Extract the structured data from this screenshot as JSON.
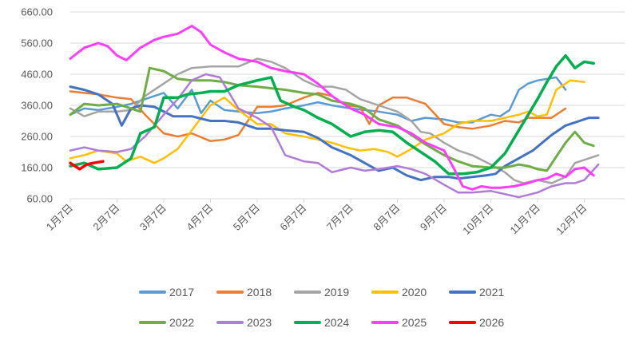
{
  "chart_data": {
    "type": "line",
    "title": "",
    "xlabel": "",
    "ylabel": "",
    "ylim": [
      60,
      660
    ],
    "yticks": [
      "660.00",
      "560.00",
      "460.00",
      "360.00",
      "260.00",
      "160.00",
      "60.00"
    ],
    "ytick_values": [
      660,
      560,
      460,
      360,
      260,
      160,
      60
    ],
    "categories": [
      "1月7日",
      "2月7日",
      "3月7日",
      "4月7日",
      "5月7日",
      "6月7日",
      "7月7日",
      "8月7日",
      "9月7日",
      "10月7日",
      "11月7日",
      "12月7日"
    ],
    "grid": "horizontal",
    "legend_position": "bottom",
    "series": [
      {
        "name": "2017",
        "color": "#5B9BD5",
        "width": 2.5,
        "x": [
          0,
          0.3,
          0.6,
          1,
          1.3,
          1.6,
          2,
          2.3,
          2.6,
          2.8,
          3,
          3.3,
          3.6,
          4,
          4.3,
          4.6,
          5,
          5.3,
          5.6,
          6,
          6.3,
          6.6,
          7,
          7.3,
          7.6,
          8,
          8.3,
          8.6,
          9,
          9.2,
          9.4,
          9.6,
          9.8,
          10,
          10.2,
          10.4,
          10.6
        ],
        "values": [
          330,
          350,
          345,
          355,
          365,
          380,
          400,
          350,
          410,
          335,
          375,
          345,
          340,
          335,
          340,
          350,
          360,
          370,
          360,
          350,
          345,
          340,
          330,
          310,
          320,
          315,
          305,
          305,
          330,
          325,
          345,
          410,
          430,
          440,
          445,
          450,
          410
        ]
      },
      {
        "name": "2018",
        "color": "#ED7D31",
        "width": 2.5,
        "x": [
          0,
          0.3,
          0.6,
          1,
          1.3,
          1.6,
          2,
          2.3,
          2.6,
          3,
          3.3,
          3.6,
          4,
          4.3,
          4.6,
          5,
          5.3,
          5.6,
          5.9,
          6.2,
          6.4,
          6.6,
          6.9,
          7.2,
          7.6,
          8,
          8.3,
          8.6,
          9,
          9.3,
          9.6,
          9.8,
          10,
          10.3,
          10.6
        ],
        "values": [
          405,
          400,
          395,
          385,
          380,
          330,
          270,
          260,
          270,
          245,
          250,
          265,
          355,
          355,
          360,
          385,
          400,
          390,
          360,
          355,
          300,
          360,
          385,
          385,
          365,
          300,
          290,
          285,
          295,
          310,
          305,
          320,
          320,
          320,
          350
        ]
      },
      {
        "name": "2019",
        "color": "#A5A5A5",
        "width": 2.5,
        "x": [
          0,
          0.3,
          0.6,
          1,
          1.3,
          1.6,
          2,
          2.3,
          2.6,
          3,
          3.3,
          3.6,
          4,
          4.3,
          4.6,
          5,
          5.3,
          5.6,
          5.9,
          6.2,
          6.6,
          7,
          7.3,
          7.5,
          7.7,
          8,
          8.3,
          8.6,
          9,
          9.3,
          9.5,
          9.7,
          10,
          10.3,
          10.6,
          10.8,
          11,
          11.3
        ],
        "values": [
          350,
          325,
          340,
          340,
          345,
          390,
          430,
          460,
          480,
          485,
          485,
          485,
          510,
          500,
          480,
          440,
          420,
          420,
          410,
          380,
          360,
          340,
          310,
          275,
          270,
          240,
          215,
          200,
          170,
          145,
          120,
          110,
          120,
          110,
          130,
          175,
          185,
          200
        ]
      },
      {
        "name": "2020",
        "color": "#FFC000",
        "width": 2.5,
        "x": [
          0,
          0.3,
          0.6,
          1,
          1.2,
          1.5,
          1.8,
          2,
          2.3,
          2.6,
          3,
          3.3,
          3.6,
          4,
          4.3,
          4.6,
          5,
          5.3,
          5.6,
          5.9,
          6.2,
          6.5,
          6.8,
          7,
          7.3,
          7.6,
          8,
          8.3,
          8.6,
          9,
          9.3,
          9.6,
          9.8,
          10,
          10.2,
          10.4,
          10.7,
          11
        ],
        "values": [
          190,
          200,
          215,
          205,
          180,
          195,
          175,
          190,
          220,
          280,
          360,
          385,
          345,
          300,
          300,
          270,
          260,
          250,
          240,
          225,
          215,
          220,
          210,
          195,
          220,
          250,
          270,
          300,
          310,
          310,
          320,
          330,
          340,
          325,
          330,
          410,
          440,
          435
        ]
      },
      {
        "name": "2021",
        "color": "#4472C4",
        "width": 3,
        "x": [
          0,
          0.3,
          0.6,
          0.9,
          1.1,
          1.3,
          1.5,
          1.8,
          2.2,
          2.6,
          3,
          3.3,
          3.6,
          4,
          4.3,
          4.6,
          5,
          5.3,
          5.6,
          6,
          6.3,
          6.6,
          6.9,
          7.2,
          7.5,
          7.8,
          8.1,
          8.3,
          8.6,
          8.9,
          9.1,
          9.3,
          9.6,
          9.9,
          10.1,
          10.3,
          10.6,
          10.9,
          11.1,
          11.3
        ],
        "values": [
          420,
          410,
          395,
          365,
          295,
          350,
          360,
          355,
          325,
          325,
          310,
          310,
          305,
          285,
          285,
          280,
          275,
          255,
          225,
          200,
          175,
          150,
          160,
          135,
          120,
          130,
          130,
          125,
          130,
          135,
          140,
          165,
          190,
          215,
          240,
          265,
          295,
          310,
          320,
          320
        ]
      },
      {
        "name": "2022",
        "color": "#70AD47",
        "width": 3,
        "x": [
          0,
          0.3,
          0.6,
          1,
          1.3,
          1.5,
          1.7,
          2,
          2.3,
          2.6,
          3,
          3.3,
          3.6,
          4,
          4.3,
          4.6,
          5,
          5.3,
          5.6,
          6,
          6.3,
          6.6,
          7,
          7.3,
          7.6,
          8,
          8.3,
          8.6,
          9,
          9.3,
          9.6,
          9.8,
          10,
          10.2,
          10.4,
          10.6,
          10.8,
          11,
          11.2
        ],
        "values": [
          330,
          365,
          360,
          365,
          350,
          340,
          480,
          470,
          445,
          440,
          440,
          435,
          425,
          420,
          415,
          410,
          400,
          395,
          375,
          365,
          350,
          315,
          295,
          265,
          235,
          200,
          180,
          165,
          160,
          160,
          170,
          165,
          155,
          150,
          195,
          240,
          275,
          240,
          230
        ]
      },
      {
        "name": "2023",
        "color": "#B07CD8",
        "width": 2.5,
        "x": [
          0,
          0.3,
          0.6,
          1,
          1.3,
          1.6,
          2,
          2.3,
          2.6,
          2.9,
          3.2,
          3.6,
          4,
          4.3,
          4.6,
          5,
          5.3,
          5.6,
          6,
          6.3,
          6.6,
          7,
          7.3,
          7.6,
          8,
          8.3,
          8.6,
          9,
          9.3,
          9.6,
          10,
          10.3,
          10.6,
          10.8,
          11,
          11.3
        ],
        "values": [
          215,
          225,
          215,
          210,
          220,
          260,
          330,
          380,
          440,
          460,
          450,
          350,
          320,
          290,
          200,
          180,
          175,
          145,
          160,
          150,
          155,
          165,
          155,
          140,
          105,
          80,
          80,
          85,
          75,
          65,
          80,
          100,
          110,
          110,
          120,
          170
        ]
      },
      {
        "name": "2024",
        "color": "#00B050",
        "width": 3.5,
        "x": [
          0,
          0.3,
          0.6,
          1,
          1.3,
          1.5,
          1.8,
          2,
          2.3,
          2.5,
          2.8,
          3,
          3.3,
          3.6,
          4,
          4.3,
          4.5,
          4.8,
          5,
          5.3,
          5.6,
          6,
          6.3,
          6.6,
          6.9,
          7.2,
          7.5,
          7.8,
          8.1,
          8.4,
          8.7,
          9,
          9.3,
          9.6,
          9.8,
          10,
          10.2,
          10.4,
          10.6,
          10.8,
          11,
          11.2
        ],
        "values": [
          165,
          175,
          155,
          160,
          190,
          270,
          290,
          385,
          385,
          395,
          400,
          405,
          405,
          425,
          440,
          450,
          375,
          355,
          345,
          320,
          300,
          260,
          275,
          280,
          275,
          240,
          210,
          180,
          140,
          140,
          145,
          160,
          205,
          280,
          330,
          380,
          435,
          485,
          520,
          480,
          500,
          495
        ]
      },
      {
        "name": "2025",
        "color": "#FF3DFF",
        "width": 3,
        "x": [
          0,
          0.3,
          0.6,
          0.8,
          1,
          1.2,
          1.5,
          1.8,
          2,
          2.3,
          2.6,
          2.8,
          3,
          3.3,
          3.6,
          4,
          4.3,
          4.6,
          5,
          5.3,
          5.6,
          6,
          6.3,
          6.6,
          7,
          7.3,
          7.6,
          8,
          8.2,
          8.4,
          8.6,
          8.8,
          9,
          9.2,
          9.5,
          9.8,
          10,
          10.2,
          10.4,
          10.6,
          10.8,
          11,
          11.2
        ],
        "values": [
          510,
          545,
          560,
          550,
          520,
          505,
          545,
          570,
          580,
          590,
          615,
          595,
          555,
          530,
          510,
          500,
          480,
          470,
          460,
          430,
          390,
          350,
          330,
          300,
          290,
          270,
          240,
          215,
          160,
          100,
          90,
          100,
          95,
          95,
          100,
          110,
          120,
          125,
          140,
          130,
          155,
          160,
          135
        ]
      },
      {
        "name": "2026",
        "color": "#FF0000",
        "width": 3.5,
        "x": [
          0,
          0.2,
          0.35,
          0.5,
          0.7
        ],
        "values": [
          175,
          155,
          170,
          175,
          180
        ]
      }
    ]
  }
}
